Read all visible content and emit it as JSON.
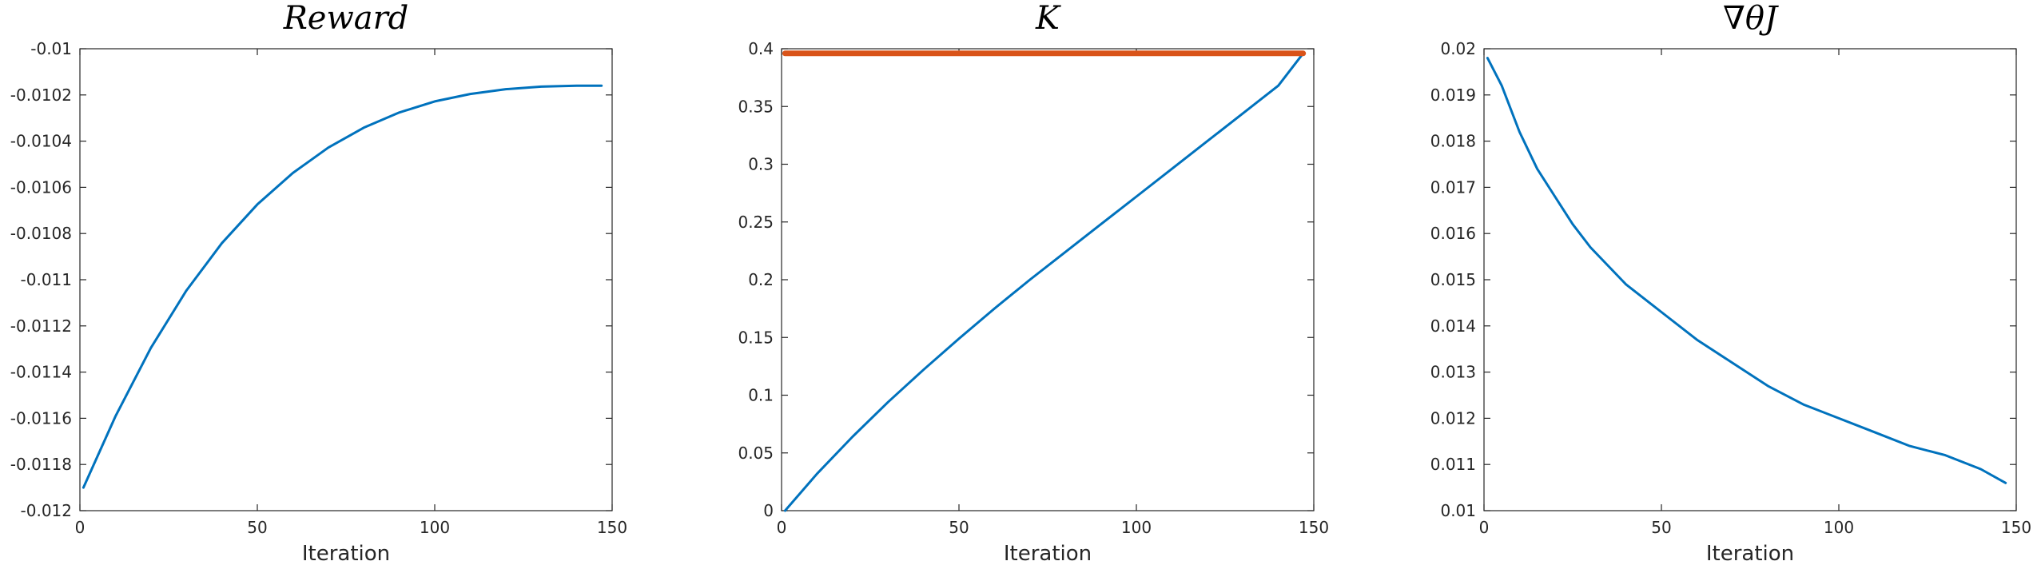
{
  "colors": {
    "series_blue": "#0072BD",
    "series_orange": "#D95319",
    "axis": "#262626"
  },
  "chart_data": [
    {
      "type": "line",
      "title": "Reward",
      "xlabel": "Iteration",
      "ylabel": "",
      "xlim": [
        0,
        150
      ],
      "ylim": [
        -0.012,
        -0.01
      ],
      "xticks": [
        "0",
        "50",
        "100",
        "150"
      ],
      "yticks": [
        "-0.012",
        "-0.0118",
        "-0.0116",
        "-0.0114",
        "-0.0112",
        "-0.011",
        "-0.0108",
        "-0.0106",
        "-0.0104",
        "-0.0102",
        "-0.01"
      ],
      "grid": false,
      "series": [
        {
          "color": "#0072BD",
          "x": [
            1,
            10,
            20,
            30,
            40,
            50,
            60,
            70,
            80,
            90,
            100,
            110,
            120,
            130,
            140,
            147
          ],
          "y": [
            -0.0119,
            -0.011592,
            -0.011295,
            -0.011047,
            -0.010842,
            -0.010674,
            -0.010538,
            -0.010428,
            -0.010342,
            -0.010276,
            -0.010228,
            -0.010196,
            -0.010175,
            -0.010164,
            -0.01016,
            -0.01016
          ]
        }
      ]
    },
    {
      "type": "line",
      "title": "K",
      "xlabel": "Iteration",
      "ylabel": "",
      "xlim": [
        0,
        150
      ],
      "ylim": [
        0,
        0.4
      ],
      "xticks": [
        "0",
        "50",
        "100",
        "150"
      ],
      "yticks": [
        "0",
        "0.05",
        "0.1",
        "0.15",
        "0.2",
        "0.25",
        "0.3",
        "0.35",
        "0.4"
      ],
      "grid": false,
      "series": [
        {
          "color": "#0072BD",
          "x": [
            1,
            10,
            20,
            30,
            40,
            50,
            60,
            70,
            80,
            90,
            100,
            110,
            120,
            130,
            140,
            147
          ],
          "y": [
            0,
            0.032,
            0.064,
            0.094,
            0.122,
            0.149,
            0.175,
            0.2,
            0.224,
            0.248,
            0.272,
            0.296,
            0.32,
            0.344,
            0.368,
            0.396
          ]
        },
        {
          "color": "#D95319",
          "x": [
            1,
            147
          ],
          "y": [
            0.396,
            0.396
          ]
        }
      ]
    },
    {
      "type": "line",
      "title": "∇θJ",
      "xlabel": "Iteration",
      "ylabel": "",
      "xlim": [
        0,
        150
      ],
      "ylim": [
        0.01,
        0.02
      ],
      "xticks": [
        "0",
        "50",
        "100",
        "150"
      ],
      "yticks": [
        "0.01",
        "0.011",
        "0.012",
        "0.013",
        "0.014",
        "0.015",
        "0.016",
        "0.017",
        "0.018",
        "0.019",
        "0.02"
      ],
      "grid": false,
      "series": [
        {
          "color": "#0072BD",
          "x": [
            1,
            5,
            10,
            15,
            20,
            25,
            30,
            40,
            50,
            60,
            70,
            80,
            90,
            100,
            110,
            120,
            130,
            140,
            147
          ],
          "y": [
            0.0198,
            0.0192,
            0.0182,
            0.0174,
            0.0168,
            0.0162,
            0.0157,
            0.0149,
            0.0143,
            0.0137,
            0.0132,
            0.0127,
            0.0123,
            0.012,
            0.0117,
            0.0114,
            0.0112,
            0.0109,
            0.0106
          ]
        }
      ]
    }
  ]
}
